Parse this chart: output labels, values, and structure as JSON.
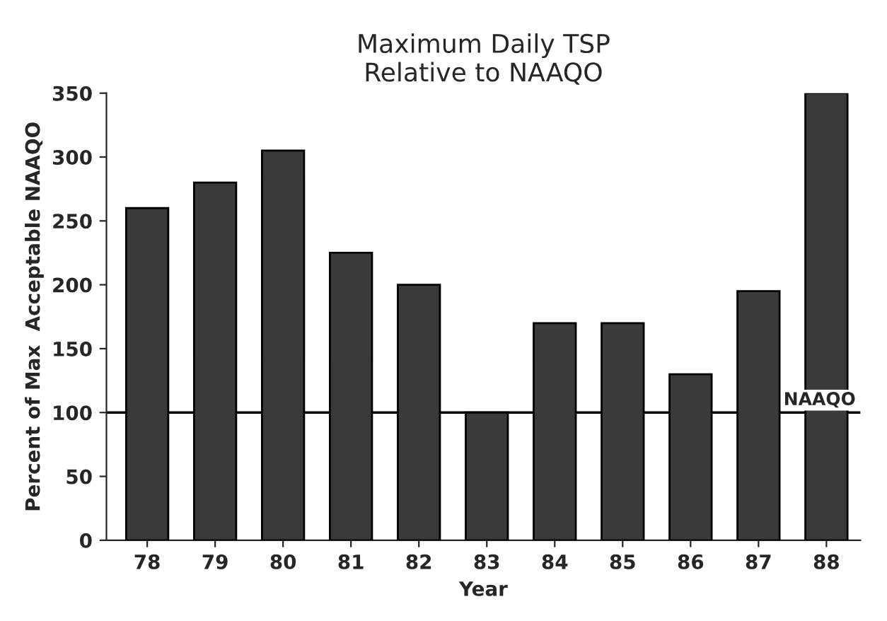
{
  "chart_data": {
    "type": "bar",
    "title": "Maximum Daily TSP\nRelative to NAAQO",
    "xlabel": "Year",
    "ylabel": "Percent of Max  Acceptable NAAQO",
    "categories": [
      "78",
      "79",
      "80",
      "81",
      "82",
      "83",
      "84",
      "85",
      "86",
      "87",
      "88"
    ],
    "values": [
      260,
      280,
      305,
      225,
      200,
      100,
      170,
      170,
      130,
      195,
      350
    ],
    "color": "#3a3a3a",
    "ylim": [
      0,
      350
    ],
    "yticks": [
      0,
      50,
      100,
      150,
      200,
      250,
      300,
      350
    ],
    "grid": false,
    "legend": false,
    "ref_lines": [
      {
        "axis": "y",
        "value": 100,
        "label": "NAAQO",
        "color": "#000000",
        "line_style": "solid"
      }
    ]
  }
}
